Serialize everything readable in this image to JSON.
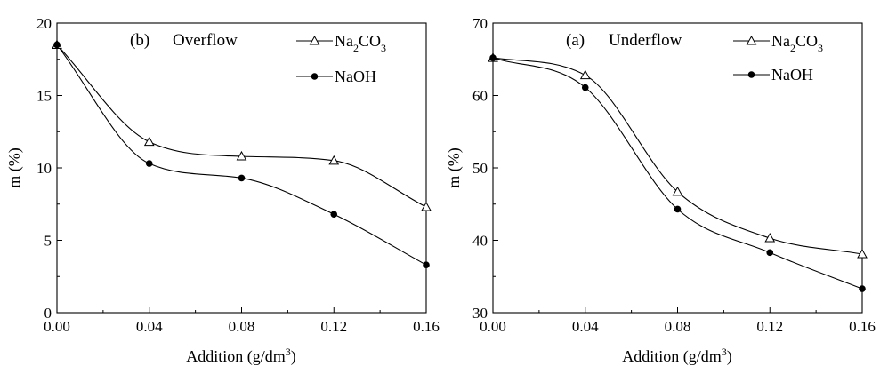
{
  "chart_data": [
    {
      "type": "line",
      "title": "(b)",
      "subtitle": "Overflow",
      "xlabel": "Addition (g/dm3)",
      "xlabel_base": "Addition (g/dm",
      "xlabel_sup": "3",
      "xlabel_end": ")",
      "ylabel": "m (%)",
      "xlim": [
        0,
        0.16
      ],
      "ylim": [
        0,
        20
      ],
      "xticks": [
        "0.00",
        "0.04",
        "0.08",
        "0.12",
        "0.16"
      ],
      "yticks": [
        "0",
        "5",
        "10",
        "15",
        "20"
      ],
      "legend_position": "top-right",
      "series": [
        {
          "name": "Na2CO3",
          "name_base": "Na",
          "name_sub1": "2",
          "name_mid": "CO",
          "name_sub2": "3",
          "marker": "open-triangle",
          "x": [
            0,
            0.04,
            0.08,
            0.12,
            0.16
          ],
          "y": [
            18.5,
            11.8,
            10.8,
            10.5,
            7.3
          ]
        },
        {
          "name": "NaOH",
          "marker": "filled-circle",
          "x": [
            0,
            0.04,
            0.08,
            0.12,
            0.16
          ],
          "y": [
            18.5,
            10.3,
            9.3,
            6.8,
            3.3
          ]
        }
      ]
    },
    {
      "type": "line",
      "title": "(a)",
      "subtitle": "Underflow",
      "xlabel": "Addition (g/dm3)",
      "xlabel_base": "Addition (g/dm",
      "xlabel_sup": "3",
      "xlabel_end": ")",
      "ylabel": "m (%)",
      "xlim": [
        0,
        0.16
      ],
      "ylim": [
        30,
        70
      ],
      "xticks": [
        "0.00",
        "0.04",
        "0.08",
        "0.12",
        "0.16"
      ],
      "yticks": [
        "30",
        "40",
        "50",
        "60",
        "70"
      ],
      "legend_position": "top-right",
      "series": [
        {
          "name": "Na2CO3",
          "name_base": "Na",
          "name_sub1": "2",
          "name_mid": "CO",
          "name_sub2": "3",
          "marker": "open-triangle",
          "x": [
            0,
            0.04,
            0.08,
            0.12,
            0.16
          ],
          "y": [
            65.2,
            62.8,
            46.7,
            40.3,
            38.1
          ]
        },
        {
          "name": "NaOH",
          "marker": "filled-circle",
          "x": [
            0,
            0.04,
            0.08,
            0.12,
            0.16
          ],
          "y": [
            65.2,
            61.1,
            44.3,
            38.3,
            33.3
          ]
        }
      ]
    }
  ]
}
